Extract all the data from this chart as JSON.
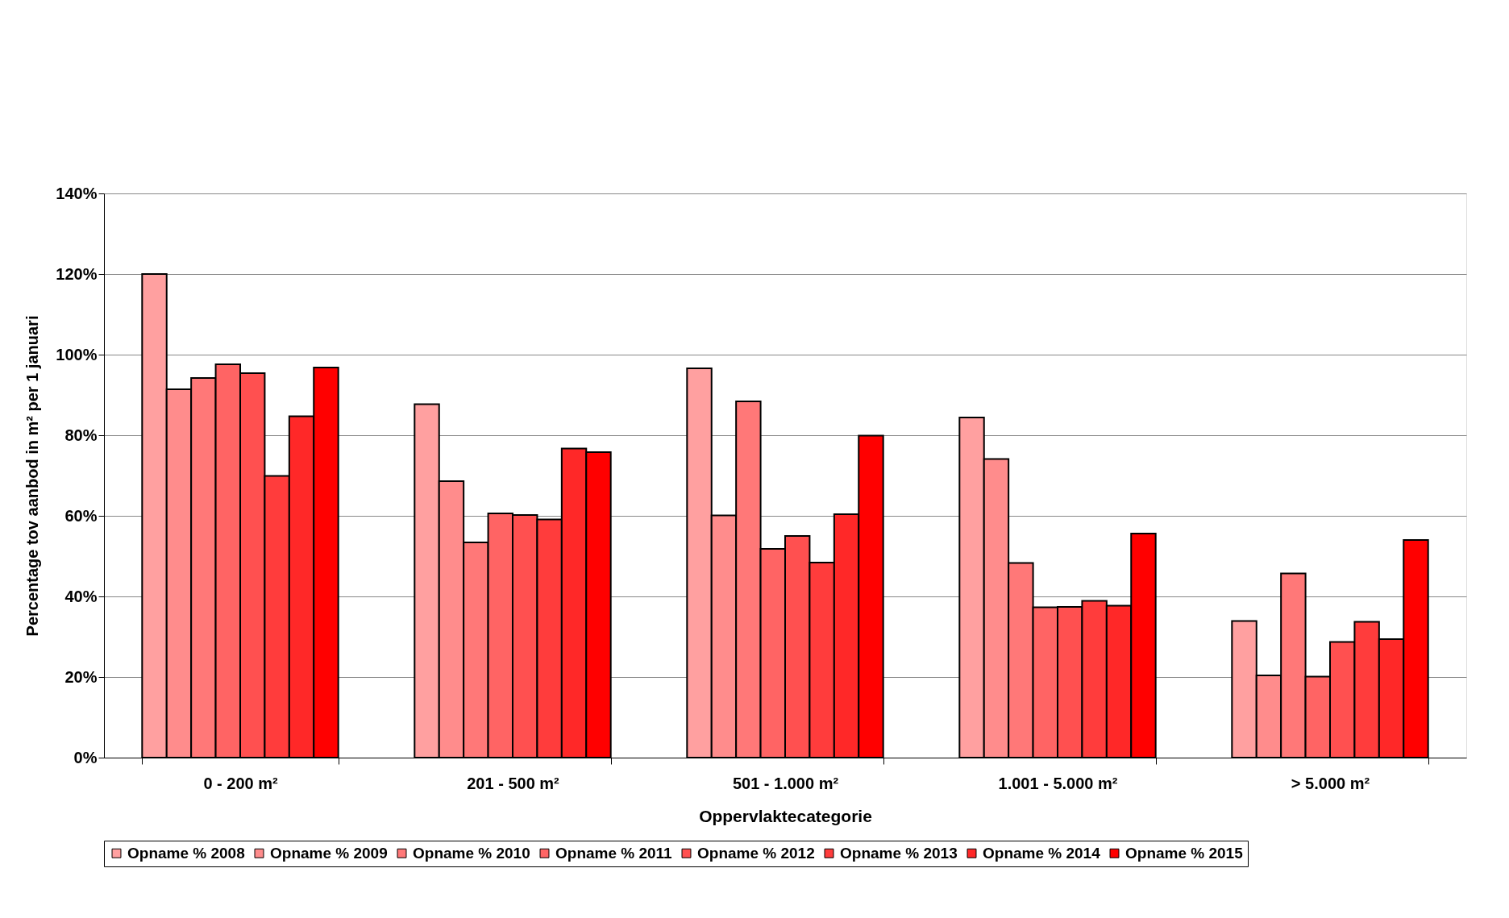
{
  "chart_data": {
    "type": "bar",
    "xlabel": "Oppervlaktecategorie",
    "ylabel": "Percentage tov aanbod in m² per 1 januari",
    "categories": [
      "0 - 200 m²",
      "201 - 500 m²",
      "501 - 1.000 m²",
      "1.001 - 5.000 m²",
      "> 5.000 m²"
    ],
    "series": [
      {
        "name": "Opname % 2008",
        "color": "#ffa0a0",
        "values": [
          120,
          87.7,
          96.6,
          84.4,
          33.9
        ]
      },
      {
        "name": "Opname % 2009",
        "color": "#ff8c8c",
        "values": [
          91.4,
          68.6,
          60.1,
          74.1,
          20.4
        ]
      },
      {
        "name": "Opname % 2010",
        "color": "#ff7878",
        "values": [
          94.2,
          53.4,
          88.4,
          48.3,
          45.7
        ]
      },
      {
        "name": "Opname % 2011",
        "color": "#ff6464",
        "values": [
          97.6,
          60.6,
          51.8,
          37.3,
          20.1
        ]
      },
      {
        "name": "Opname % 2012",
        "color": "#ff5050",
        "values": [
          95.4,
          60.2,
          55.0,
          37.4,
          28.7
        ]
      },
      {
        "name": "Opname % 2013",
        "color": "#ff3c3c",
        "values": [
          69.9,
          59.1,
          48.4,
          38.9,
          33.7
        ]
      },
      {
        "name": "Opname % 2014",
        "color": "#ff2828",
        "values": [
          84.7,
          76.7,
          60.4,
          37.7,
          29.4
        ]
      },
      {
        "name": "Opname % 2015",
        "color": "#ff0000",
        "values": [
          96.8,
          75.8,
          79.9,
          55.6,
          54.0
        ]
      }
    ],
    "ylim": [
      0,
      140
    ],
    "yticks": [
      {
        "value": 0,
        "label": "0%"
      },
      {
        "value": 20,
        "label": "20%"
      },
      {
        "value": 40,
        "label": "40%"
      },
      {
        "value": 60,
        "label": "60%"
      },
      {
        "value": 80,
        "label": "80%"
      },
      {
        "value": 100,
        "label": "100%"
      },
      {
        "value": 120,
        "label": "120%"
      },
      {
        "value": 140,
        "label": "140%"
      }
    ],
    "grid": "y",
    "legend": "bottom"
  }
}
